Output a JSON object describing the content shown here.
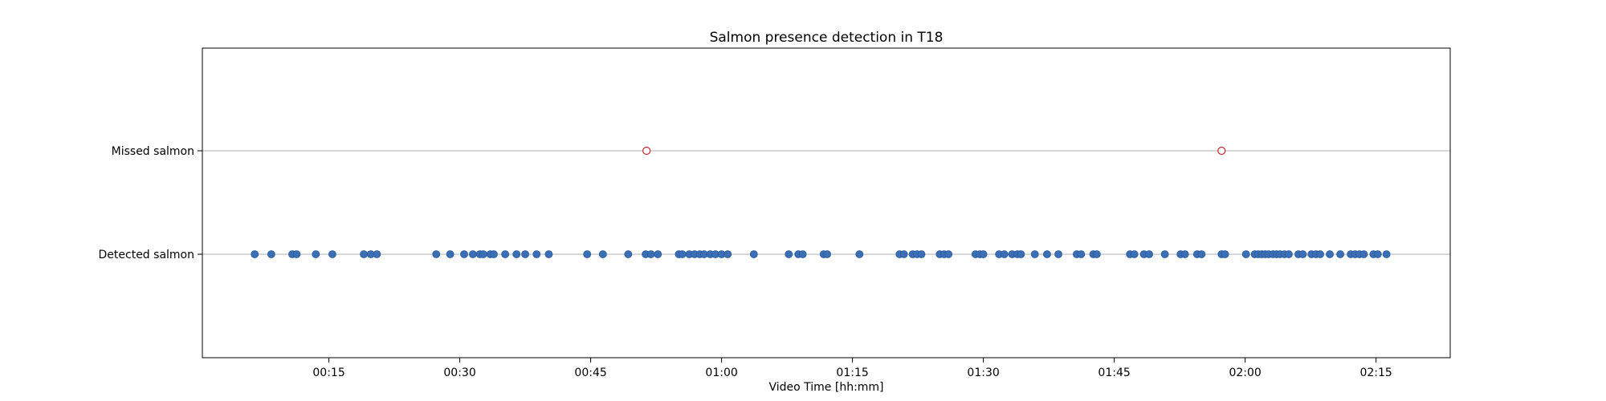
{
  "chart_data": {
    "type": "scatter",
    "title": "Salmon presence detection in T18",
    "xlabel": "Video Time [hh:mm]",
    "ylabel": "",
    "xlim_minutes": [
      0.5,
      143.5
    ],
    "y_categories": [
      "Detected salmon",
      "Missed salmon"
    ],
    "x_ticks": [
      "00:15",
      "00:30",
      "00:45",
      "01:00",
      "01:15",
      "01:30",
      "01:45",
      "02:00",
      "02:15"
    ],
    "x_tick_minutes": [
      15,
      30,
      45,
      60,
      75,
      90,
      105,
      120,
      135
    ],
    "grid": "horizontal",
    "series": [
      {
        "name": "Detected salmon",
        "color": "#3b6fb5",
        "marker": "filled-circle",
        "x_minutes": [
          6.5,
          8.4,
          10.8,
          11.3,
          13.5,
          15.4,
          19.0,
          19.8,
          20.5,
          27.3,
          28.9,
          30.5,
          31.5,
          32.3,
          32.7,
          33.5,
          33.9,
          35.2,
          36.5,
          37.5,
          38.8,
          40.2,
          44.6,
          46.4,
          49.3,
          51.3,
          51.9,
          52.7,
          55.1,
          55.5,
          56.3,
          56.9,
          57.5,
          58.0,
          58.7,
          59.3,
          60.0,
          60.7,
          63.7,
          67.7,
          68.8,
          69.3,
          71.7,
          72.1,
          75.8,
          80.4,
          80.9,
          81.9,
          82.4,
          82.9,
          85.0,
          85.5,
          86.0,
          89.1,
          89.6,
          90.0,
          91.8,
          92.4,
          93.3,
          93.9,
          94.3,
          95.9,
          97.3,
          98.6,
          100.7,
          101.2,
          102.6,
          103.0,
          106.8,
          107.3,
          108.4,
          109.0,
          110.8,
          112.6,
          113.1,
          114.5,
          115.0,
          117.3,
          117.7,
          120.1,
          121.1,
          121.5,
          121.9,
          122.3,
          122.7,
          123.2,
          123.6,
          124.0,
          124.5,
          125.0,
          126.1,
          126.6,
          127.6,
          128.1,
          128.6,
          129.7,
          130.9,
          132.1,
          132.6,
          133.1,
          133.6,
          134.7,
          135.2,
          136.2
        ]
      },
      {
        "name": "Missed salmon",
        "color": "#c0282d",
        "marker": "hollow-circle",
        "x_minutes": [
          51.4,
          117.3
        ]
      }
    ]
  }
}
